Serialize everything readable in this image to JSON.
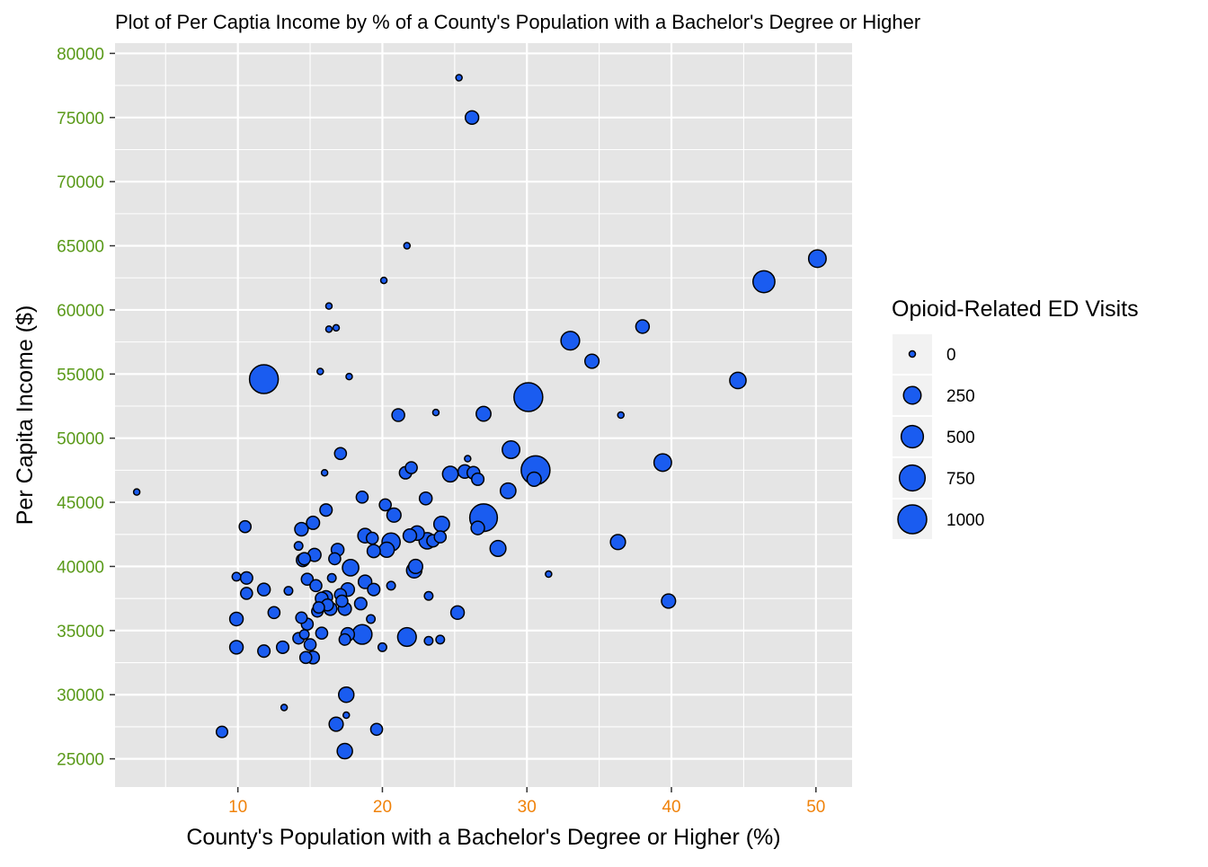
{
  "chart_data": {
    "type": "scatter",
    "title": "Plot of Per Captia Income by % of a County's Population with a Bachelor's Degree or Higher",
    "xlabel": "County's Population with a Bachelor's Degree or Higher (%)",
    "ylabel": "Per Capita Income ($)",
    "xlim": [
      1.5,
      52.5
    ],
    "ylim": [
      22800,
      80800
    ],
    "x_ticks": [
      10,
      20,
      30,
      40,
      50
    ],
    "x_tick_labels": [
      "10",
      "20",
      "30",
      "40",
      "50"
    ],
    "y_ticks": [
      25000,
      30000,
      35000,
      40000,
      45000,
      50000,
      55000,
      60000,
      65000,
      70000,
      75000,
      80000
    ],
    "y_tick_labels": [
      "25000",
      "30000",
      "35000",
      "40000",
      "45000",
      "50000",
      "55000",
      "60000",
      "65000",
      "70000",
      "75000",
      "80000"
    ],
    "grid": true,
    "colors": {
      "panel": "#e5e5e5",
      "grid": "#ffffff",
      "point_fill": "#1a5cf0",
      "point_stroke": "#000000",
      "x_tick_label": "#f0820a",
      "y_tick_label": "#5a9a1a",
      "text": "#000000"
    },
    "legend": {
      "title": "Opioid-Related ED Visits",
      "position": "right",
      "entries": [
        {
          "label": "0",
          "value": 0
        },
        {
          "label": "250",
          "value": 250
        },
        {
          "label": "500",
          "value": 500
        },
        {
          "label": "750",
          "value": 750
        },
        {
          "label": "1000",
          "value": 1000
        }
      ]
    },
    "size_domain": [
      0,
      1000
    ],
    "points": [
      {
        "x": 3.0,
        "y": 45800,
        "size": 0
      },
      {
        "x": 8.9,
        "y": 27100,
        "size": 50
      },
      {
        "x": 9.9,
        "y": 39200,
        "size": 10
      },
      {
        "x": 9.9,
        "y": 35900,
        "size": 100
      },
      {
        "x": 9.9,
        "y": 33700,
        "size": 100
      },
      {
        "x": 10.5,
        "y": 43100,
        "size": 60
      },
      {
        "x": 10.6,
        "y": 39100,
        "size": 70
      },
      {
        "x": 10.6,
        "y": 37900,
        "size": 60
      },
      {
        "x": 11.8,
        "y": 54600,
        "size": 1000
      },
      {
        "x": 11.8,
        "y": 38200,
        "size": 80
      },
      {
        "x": 11.8,
        "y": 33400,
        "size": 70
      },
      {
        "x": 12.5,
        "y": 36400,
        "size": 60
      },
      {
        "x": 13.1,
        "y": 33700,
        "size": 70
      },
      {
        "x": 13.2,
        "y": 29000,
        "size": 0
      },
      {
        "x": 13.5,
        "y": 38100,
        "size": 10
      },
      {
        "x": 14.2,
        "y": 41600,
        "size": 10
      },
      {
        "x": 14.2,
        "y": 34400,
        "size": 50
      },
      {
        "x": 14.4,
        "y": 42900,
        "size": 100
      },
      {
        "x": 14.5,
        "y": 40500,
        "size": 90
      },
      {
        "x": 14.4,
        "y": 36000,
        "size": 50
      },
      {
        "x": 14.6,
        "y": 40600,
        "size": 70
      },
      {
        "x": 14.6,
        "y": 34700,
        "size": 20
      },
      {
        "x": 14.7,
        "y": 32900,
        "size": 60
      },
      {
        "x": 14.8,
        "y": 35500,
        "size": 60
      },
      {
        "x": 14.8,
        "y": 39000,
        "size": 60
      },
      {
        "x": 15.0,
        "y": 33900,
        "size": 60
      },
      {
        "x": 15.2,
        "y": 32900,
        "size": 80
      },
      {
        "x": 15.2,
        "y": 43400,
        "size": 90
      },
      {
        "x": 15.3,
        "y": 40900,
        "size": 90
      },
      {
        "x": 15.4,
        "y": 38500,
        "size": 60
      },
      {
        "x": 15.5,
        "y": 36500,
        "size": 50
      },
      {
        "x": 15.6,
        "y": 36800,
        "size": 50
      },
      {
        "x": 15.7,
        "y": 55200,
        "size": 0
      },
      {
        "x": 15.8,
        "y": 37000,
        "size": 90
      },
      {
        "x": 15.8,
        "y": 37500,
        "size": 80
      },
      {
        "x": 15.8,
        "y": 34800,
        "size": 60
      },
      {
        "x": 16.0,
        "y": 47300,
        "size": 0
      },
      {
        "x": 16.1,
        "y": 44400,
        "size": 70
      },
      {
        "x": 16.1,
        "y": 37600,
        "size": 90
      },
      {
        "x": 16.2,
        "y": 37000,
        "size": 60
      },
      {
        "x": 16.3,
        "y": 60300,
        "size": 0
      },
      {
        "x": 16.3,
        "y": 58500,
        "size": 0
      },
      {
        "x": 16.4,
        "y": 36700,
        "size": 90
      },
      {
        "x": 16.5,
        "y": 39100,
        "size": 10
      },
      {
        "x": 16.7,
        "y": 40600,
        "size": 60
      },
      {
        "x": 16.8,
        "y": 58600,
        "size": 0
      },
      {
        "x": 16.8,
        "y": 27700,
        "size": 120
      },
      {
        "x": 16.9,
        "y": 41300,
        "size": 80
      },
      {
        "x": 17.1,
        "y": 48800,
        "size": 60
      },
      {
        "x": 17.1,
        "y": 37800,
        "size": 60
      },
      {
        "x": 17.2,
        "y": 37300,
        "size": 60
      },
      {
        "x": 17.4,
        "y": 36700,
        "size": 90
      },
      {
        "x": 17.4,
        "y": 34300,
        "size": 50
      },
      {
        "x": 17.4,
        "y": 25600,
        "size": 160
      },
      {
        "x": 17.5,
        "y": 30000,
        "size": 160
      },
      {
        "x": 17.5,
        "y": 28400,
        "size": 0
      },
      {
        "x": 17.6,
        "y": 34700,
        "size": 100
      },
      {
        "x": 17.6,
        "y": 38200,
        "size": 100
      },
      {
        "x": 17.7,
        "y": 54800,
        "size": 0
      },
      {
        "x": 17.8,
        "y": 39900,
        "size": 200
      },
      {
        "x": 18.5,
        "y": 37100,
        "size": 70
      },
      {
        "x": 18.6,
        "y": 45400,
        "size": 60
      },
      {
        "x": 18.6,
        "y": 34700,
        "size": 350
      },
      {
        "x": 18.8,
        "y": 38800,
        "size": 100
      },
      {
        "x": 18.8,
        "y": 42400,
        "size": 130
      },
      {
        "x": 19.2,
        "y": 35900,
        "size": 10
      },
      {
        "x": 19.3,
        "y": 42200,
        "size": 60
      },
      {
        "x": 19.4,
        "y": 41200,
        "size": 90
      },
      {
        "x": 19.4,
        "y": 38200,
        "size": 70
      },
      {
        "x": 19.6,
        "y": 27300,
        "size": 60
      },
      {
        "x": 20.0,
        "y": 33700,
        "size": 10
      },
      {
        "x": 20.1,
        "y": 62300,
        "size": 0
      },
      {
        "x": 20.2,
        "y": 44800,
        "size": 60
      },
      {
        "x": 20.3,
        "y": 41300,
        "size": 150
      },
      {
        "x": 20.6,
        "y": 38500,
        "size": 10
      },
      {
        "x": 20.6,
        "y": 41900,
        "size": 280
      },
      {
        "x": 20.8,
        "y": 44000,
        "size": 120
      },
      {
        "x": 21.1,
        "y": 51800,
        "size": 80
      },
      {
        "x": 21.6,
        "y": 47300,
        "size": 70
      },
      {
        "x": 21.7,
        "y": 65000,
        "size": 0
      },
      {
        "x": 21.7,
        "y": 34500,
        "size": 300
      },
      {
        "x": 21.9,
        "y": 42400,
        "size": 100
      },
      {
        "x": 22.0,
        "y": 47700,
        "size": 60
      },
      {
        "x": 22.2,
        "y": 39700,
        "size": 160
      },
      {
        "x": 22.3,
        "y": 40000,
        "size": 120
      },
      {
        "x": 22.4,
        "y": 42600,
        "size": 130
      },
      {
        "x": 23.0,
        "y": 45300,
        "size": 80
      },
      {
        "x": 23.1,
        "y": 42000,
        "size": 200
      },
      {
        "x": 23.2,
        "y": 34200,
        "size": 10
      },
      {
        "x": 23.2,
        "y": 37700,
        "size": 10
      },
      {
        "x": 23.5,
        "y": 42000,
        "size": 70
      },
      {
        "x": 23.7,
        "y": 52000,
        "size": 0
      },
      {
        "x": 24.0,
        "y": 34300,
        "size": 10
      },
      {
        "x": 24.0,
        "y": 42300,
        "size": 60
      },
      {
        "x": 24.1,
        "y": 43300,
        "size": 170
      },
      {
        "x": 24.7,
        "y": 47200,
        "size": 170
      },
      {
        "x": 25.2,
        "y": 36400,
        "size": 100
      },
      {
        "x": 25.3,
        "y": 78100,
        "size": 0
      },
      {
        "x": 25.7,
        "y": 47400,
        "size": 100
      },
      {
        "x": 25.9,
        "y": 48400,
        "size": 0
      },
      {
        "x": 26.2,
        "y": 75000,
        "size": 100
      },
      {
        "x": 26.3,
        "y": 47300,
        "size": 80
      },
      {
        "x": 26.6,
        "y": 43000,
        "size": 100
      },
      {
        "x": 26.6,
        "y": 46800,
        "size": 70
      },
      {
        "x": 27.0,
        "y": 43800,
        "size": 900
      },
      {
        "x": 27.0,
        "y": 51900,
        "size": 140
      },
      {
        "x": 28.0,
        "y": 41400,
        "size": 180
      },
      {
        "x": 28.7,
        "y": 45900,
        "size": 170
      },
      {
        "x": 28.9,
        "y": 49100,
        "size": 250
      },
      {
        "x": 30.1,
        "y": 53200,
        "size": 1000
      },
      {
        "x": 30.5,
        "y": 46800,
        "size": 120
      },
      {
        "x": 30.6,
        "y": 47500,
        "size": 1000
      },
      {
        "x": 31.5,
        "y": 39400,
        "size": 0
      },
      {
        "x": 33.0,
        "y": 57600,
        "size": 300
      },
      {
        "x": 34.5,
        "y": 56000,
        "size": 120
      },
      {
        "x": 36.3,
        "y": 41900,
        "size": 150
      },
      {
        "x": 36.5,
        "y": 51800,
        "size": 0
      },
      {
        "x": 38.0,
        "y": 58700,
        "size": 100
      },
      {
        "x": 39.4,
        "y": 48100,
        "size": 250
      },
      {
        "x": 39.8,
        "y": 37300,
        "size": 120
      },
      {
        "x": 44.6,
        "y": 54500,
        "size": 200
      },
      {
        "x": 46.4,
        "y": 62200,
        "size": 480
      },
      {
        "x": 50.1,
        "y": 64000,
        "size": 250
      }
    ]
  }
}
